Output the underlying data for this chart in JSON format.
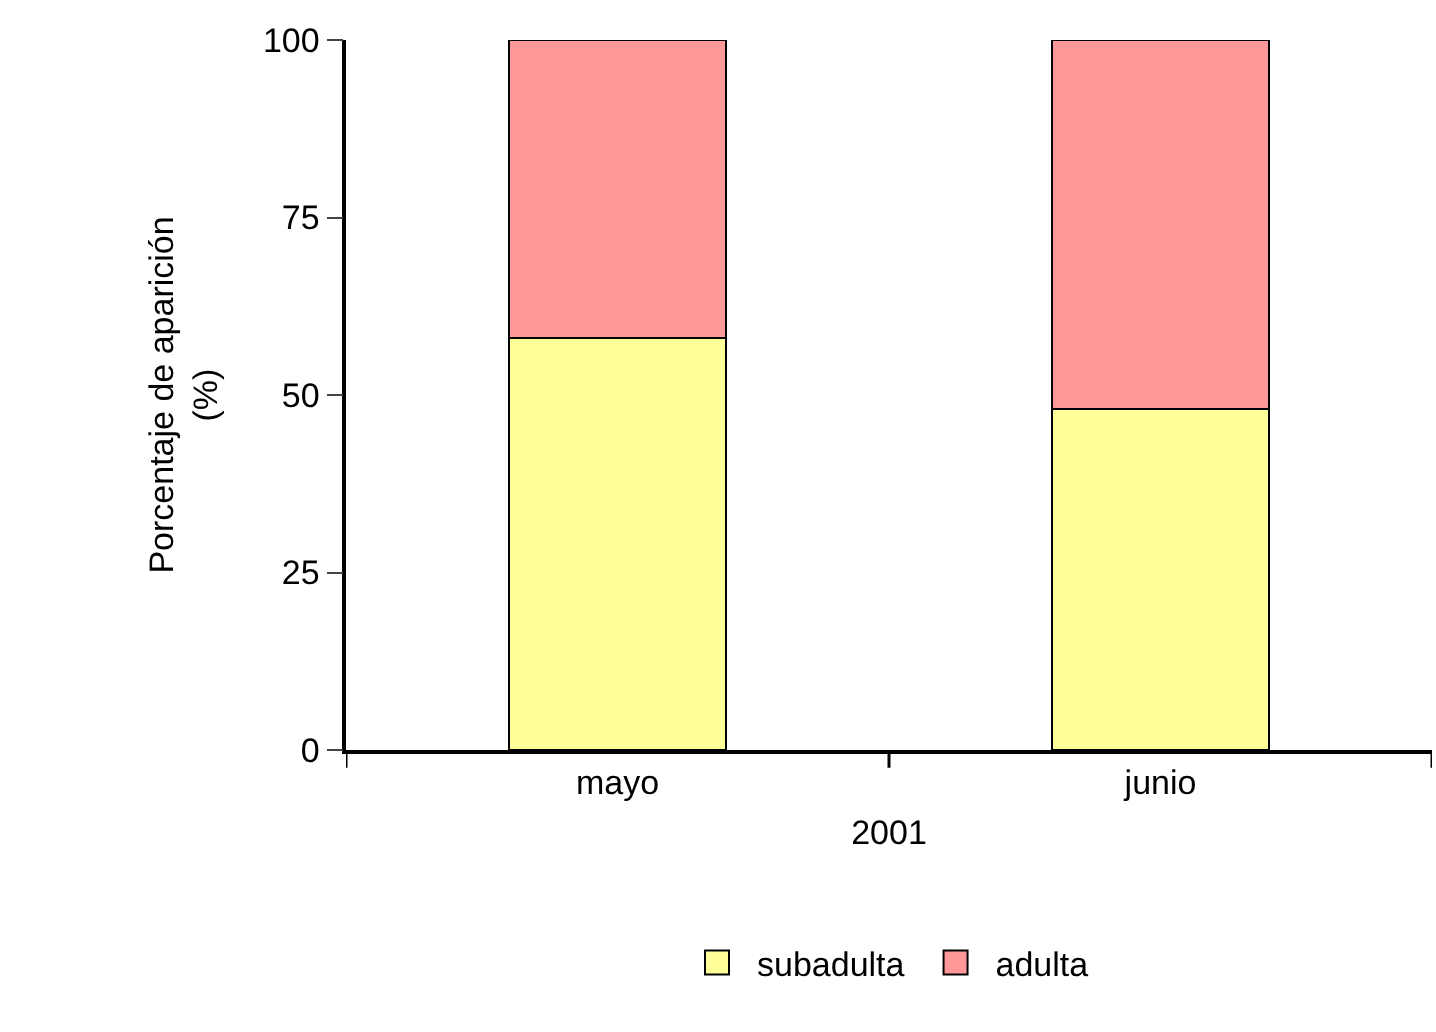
{
  "chart_data": {
    "type": "bar",
    "stacked": true,
    "categories": [
      "mayo",
      "junio"
    ],
    "series": [
      {
        "name": "subadulta",
        "color": "#ffff99",
        "values": [
          58,
          48
        ]
      },
      {
        "name": "adulta",
        "color": "#ff9999",
        "values": [
          42,
          52
        ]
      }
    ],
    "xlabel": "2001",
    "ylabel": "Porcentaje de aparición\n(%)",
    "ylim": [
      0,
      100
    ],
    "yticks": [
      0,
      25,
      50,
      75,
      100
    ],
    "grid": false,
    "legend": "bottom"
  }
}
